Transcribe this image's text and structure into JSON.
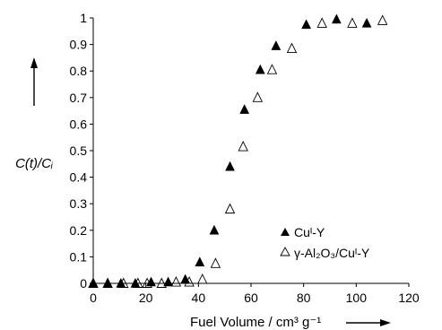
{
  "chart_data": {
    "type": "scatter",
    "xlabel": "Fuel Volume / cm³ g⁻¹",
    "ylabel": "C(t)/Cᵢ",
    "xlim": [
      0,
      120
    ],
    "ylim": [
      0,
      1
    ],
    "x_ticks": [
      "0",
      "20",
      "40",
      "60",
      "80",
      "100",
      "120"
    ],
    "y_ticks": [
      "0",
      "0.1",
      "0.2",
      "0.3",
      "0.4",
      "0.5",
      "0.6",
      "0.7",
      "0.8",
      "0.9",
      "1"
    ],
    "grid": false,
    "legend_position": "right-middle",
    "series": [
      {
        "name": "Cuᴵ-Y",
        "marker": "filled-triangle",
        "color": "#000000",
        "points": [
          [
            0,
            0
          ],
          [
            5.5,
            0
          ],
          [
            10.5,
            0
          ],
          [
            16,
            0
          ],
          [
            22,
            0.005
          ],
          [
            28.5,
            0.005
          ],
          [
            35,
            0.015
          ],
          [
            40.5,
            0.08
          ],
          [
            46,
            0.2
          ],
          [
            52,
            0.44
          ],
          [
            57.5,
            0.655
          ],
          [
            63.5,
            0.805
          ],
          [
            69.5,
            0.895
          ],
          [
            81,
            0.975
          ],
          [
            92.5,
            0.995
          ],
          [
            104,
            0.98
          ]
        ]
      },
      {
        "name": "γ-Al₂O₃/Cuᴵ-Y",
        "marker": "open-triangle",
        "color": "#000000",
        "points": [
          [
            0,
            0
          ],
          [
            5.5,
            0
          ],
          [
            11.5,
            0
          ],
          [
            17,
            0
          ],
          [
            20.5,
            0
          ],
          [
            26,
            0
          ],
          [
            31.5,
            0.005
          ],
          [
            36.5,
            0.005
          ],
          [
            41.5,
            0.015
          ],
          [
            46.5,
            0.075
          ],
          [
            52,
            0.28
          ],
          [
            57,
            0.515
          ],
          [
            62.5,
            0.7
          ],
          [
            68,
            0.805
          ],
          [
            75.5,
            0.885
          ],
          [
            87,
            0.98
          ],
          [
            98.5,
            0.98
          ],
          [
            110,
            0.99
          ]
        ]
      }
    ]
  }
}
